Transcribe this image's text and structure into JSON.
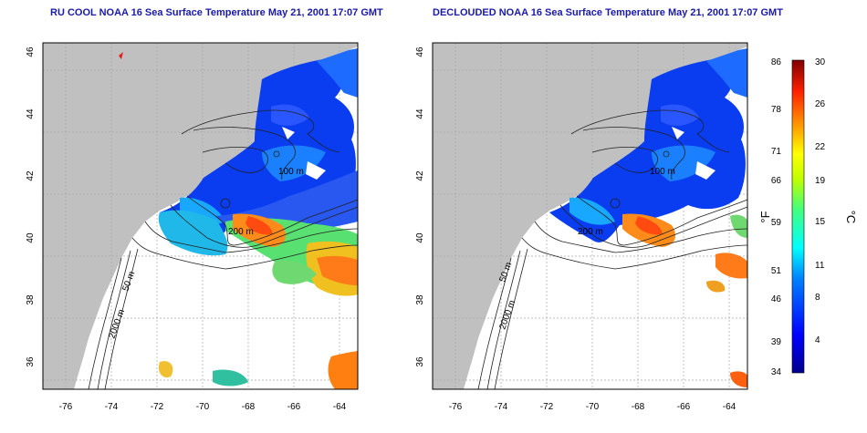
{
  "panels": [
    {
      "title": "RU COOL NOAA 16 Sea Surface Temperature May 21, 2001 17:07 GMT"
    },
    {
      "title": "DECLOUDED NOAA 16 Sea Surface Temperature May 21, 2001 17:07 GMT"
    }
  ],
  "axes": {
    "lon_ticks": [
      "-76",
      "-74",
      "-72",
      "-70",
      "-68",
      "-66",
      "-64"
    ],
    "lat_ticks": [
      "36",
      "38",
      "40",
      "42",
      "44",
      "46"
    ]
  },
  "contour_labels": [
    "100 m",
    "200 m",
    "50 m",
    "2000 m"
  ],
  "colorbar": {
    "f_label": "°F",
    "c_label": "°C",
    "f_ticks": [
      "86",
      "78",
      "71",
      "66",
      "59",
      "51",
      "46",
      "39",
      "34"
    ],
    "c_ticks": [
      "30",
      "26",
      "22",
      "19",
      "15",
      "11",
      "8",
      "4"
    ]
  },
  "colors": {
    "land": "#c0c0c0",
    "title": "#1a1aa8",
    "water": "#ffffff",
    "grid": "#a0a0a0"
  }
}
